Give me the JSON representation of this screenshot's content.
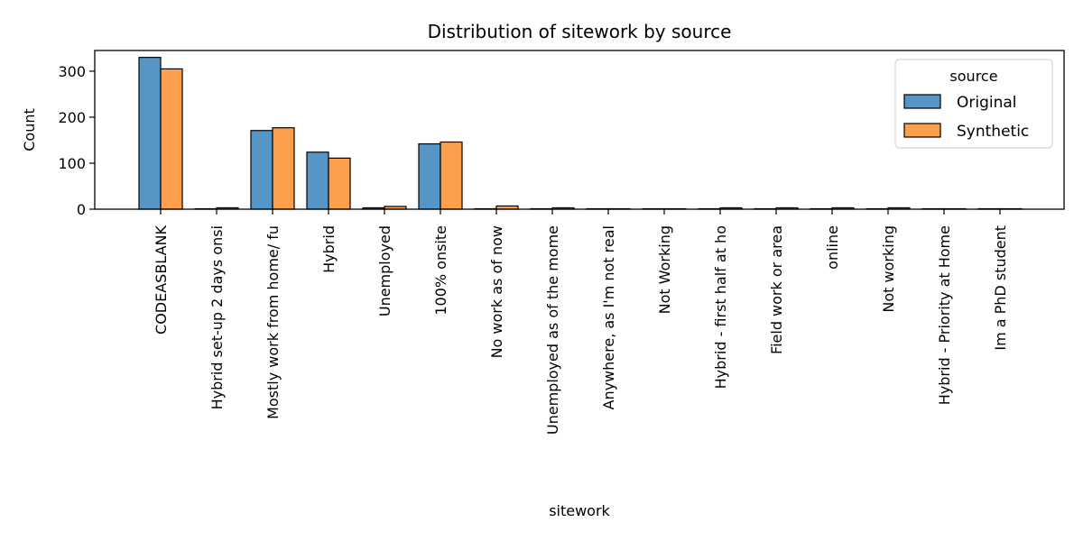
{
  "chart_data": {
    "type": "bar",
    "title": "Distribution of sitework by source",
    "xlabel": "sitework",
    "ylabel": "Count",
    "ylim": [
      0,
      345
    ],
    "yticks": [
      0,
      100,
      200,
      300
    ],
    "grid": false,
    "legend": {
      "title": "source",
      "placement": "top-right"
    },
    "categories": [
      "CODEASBLANK",
      "Hybrid set-up 2 days onsi",
      "Mostly work from home/ fu",
      "Hybrid",
      "Unemployed",
      "100% onsite",
      "No work as of now",
      "Unemployed as of the mome",
      "Anywhere, as I'm not real",
      "Not Working",
      "Hybrid - first half at ho",
      "Field work or area",
      "online",
      "Not working",
      "Hybrid - Priority at Home",
      "Im a PhD student"
    ],
    "series": [
      {
        "name": "Original",
        "color": "#5596c6",
        "values": [
          330,
          1,
          171,
          124,
          3,
          142,
          1,
          1,
          1,
          1,
          1,
          1,
          1,
          1,
          1,
          1
        ]
      },
      {
        "name": "Synthetic",
        "color": "#fda04e",
        "values": [
          305,
          3,
          177,
          111,
          6,
          146,
          7,
          3,
          1,
          1,
          3,
          3,
          3,
          3,
          1,
          1
        ]
      }
    ]
  }
}
